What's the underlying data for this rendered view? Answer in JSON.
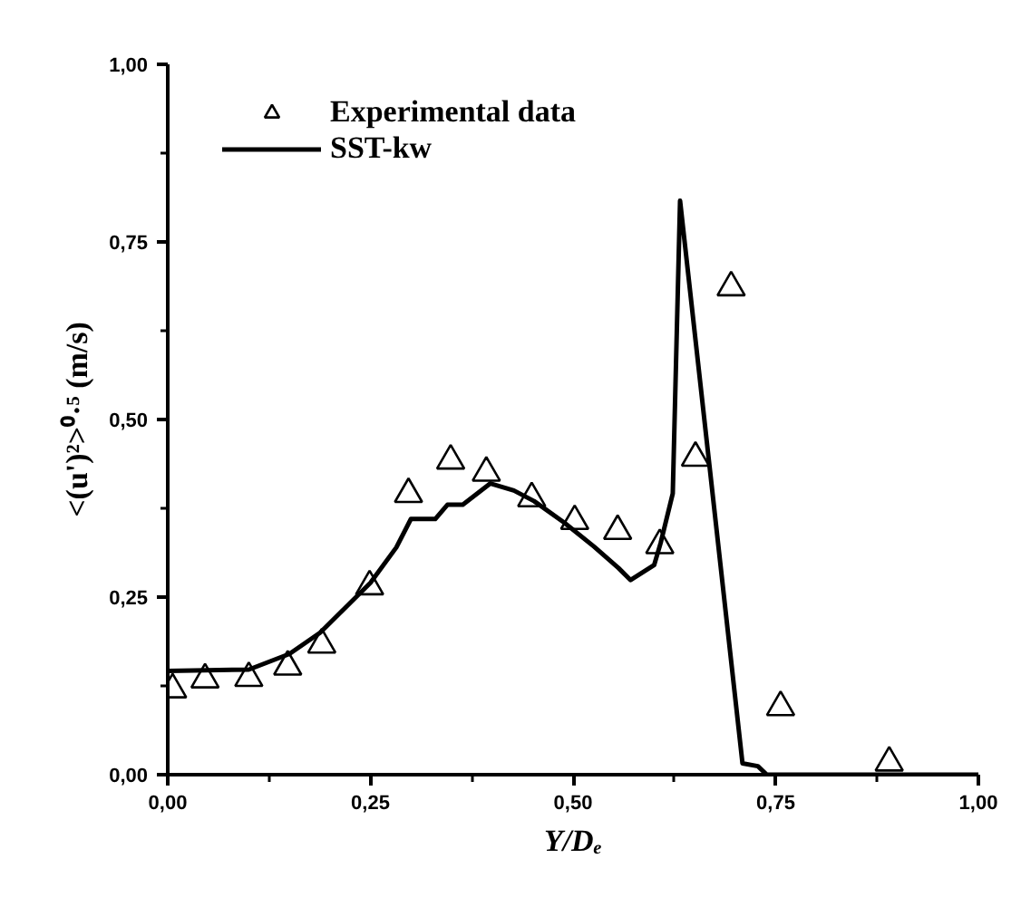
{
  "chart_data": {
    "type": "scatter",
    "xlabel": "Y/Dₑ",
    "ylabel": "<(u')²>⁰·⁵ (m/s)",
    "xlim": [
      0,
      1
    ],
    "ylim": [
      0,
      1
    ],
    "xticks": [
      {
        "value": 0,
        "label": "0,00"
      },
      {
        "value": 0.25,
        "label": "0,25"
      },
      {
        "value": 0.5,
        "label": "0,50"
      },
      {
        "value": 0.75,
        "label": "0,75"
      },
      {
        "value": 1,
        "label": "1,00"
      }
    ],
    "yticks": [
      {
        "value": 0,
        "label": "0,00"
      },
      {
        "value": 0.25,
        "label": "0,25"
      },
      {
        "value": 0.5,
        "label": "0,50"
      },
      {
        "value": 0.75,
        "label": "0,75"
      },
      {
        "value": 1,
        "label": "1,00"
      }
    ],
    "grid": false,
    "legend": "top",
    "series": [
      {
        "name": "Experimental data",
        "marker": "triangle",
        "color": "#000000",
        "x": [
          0.006,
          0.046,
          0.1,
          0.148,
          0.19,
          0.249,
          0.297,
          0.349,
          0.393,
          0.449,
          0.502,
          0.555,
          0.607,
          0.651,
          0.695,
          0.756,
          0.89
        ],
        "values": [
          0.12,
          0.134,
          0.136,
          0.152,
          0.183,
          0.265,
          0.395,
          0.442,
          0.425,
          0.389,
          0.357,
          0.343,
          0.323,
          0.446,
          0.686,
          0.095,
          0.017
        ]
      },
      {
        "name": "SST-kw",
        "type": "line",
        "line_style": "solid",
        "color": "#000000",
        "x": [
          0,
          0.1,
          0.15,
          0.188,
          0.25,
          0.282,
          0.3,
          0.33,
          0.345,
          0.364,
          0.398,
          0.427,
          0.452,
          0.489,
          0.526,
          0.556,
          0.571,
          0.6,
          0.608,
          0.623,
          0.632,
          0.709,
          0.728,
          0.739,
          1.0
        ],
        "values": [
          0.146,
          0.148,
          0.17,
          0.2,
          0.27,
          0.32,
          0.36,
          0.36,
          0.38,
          0.38,
          0.41,
          0.4,
          0.385,
          0.355,
          0.321,
          0.291,
          0.274,
          0.295,
          0.326,
          0.396,
          0.808,
          0.016,
          0.012,
          0.0,
          0.0
        ]
      }
    ]
  }
}
